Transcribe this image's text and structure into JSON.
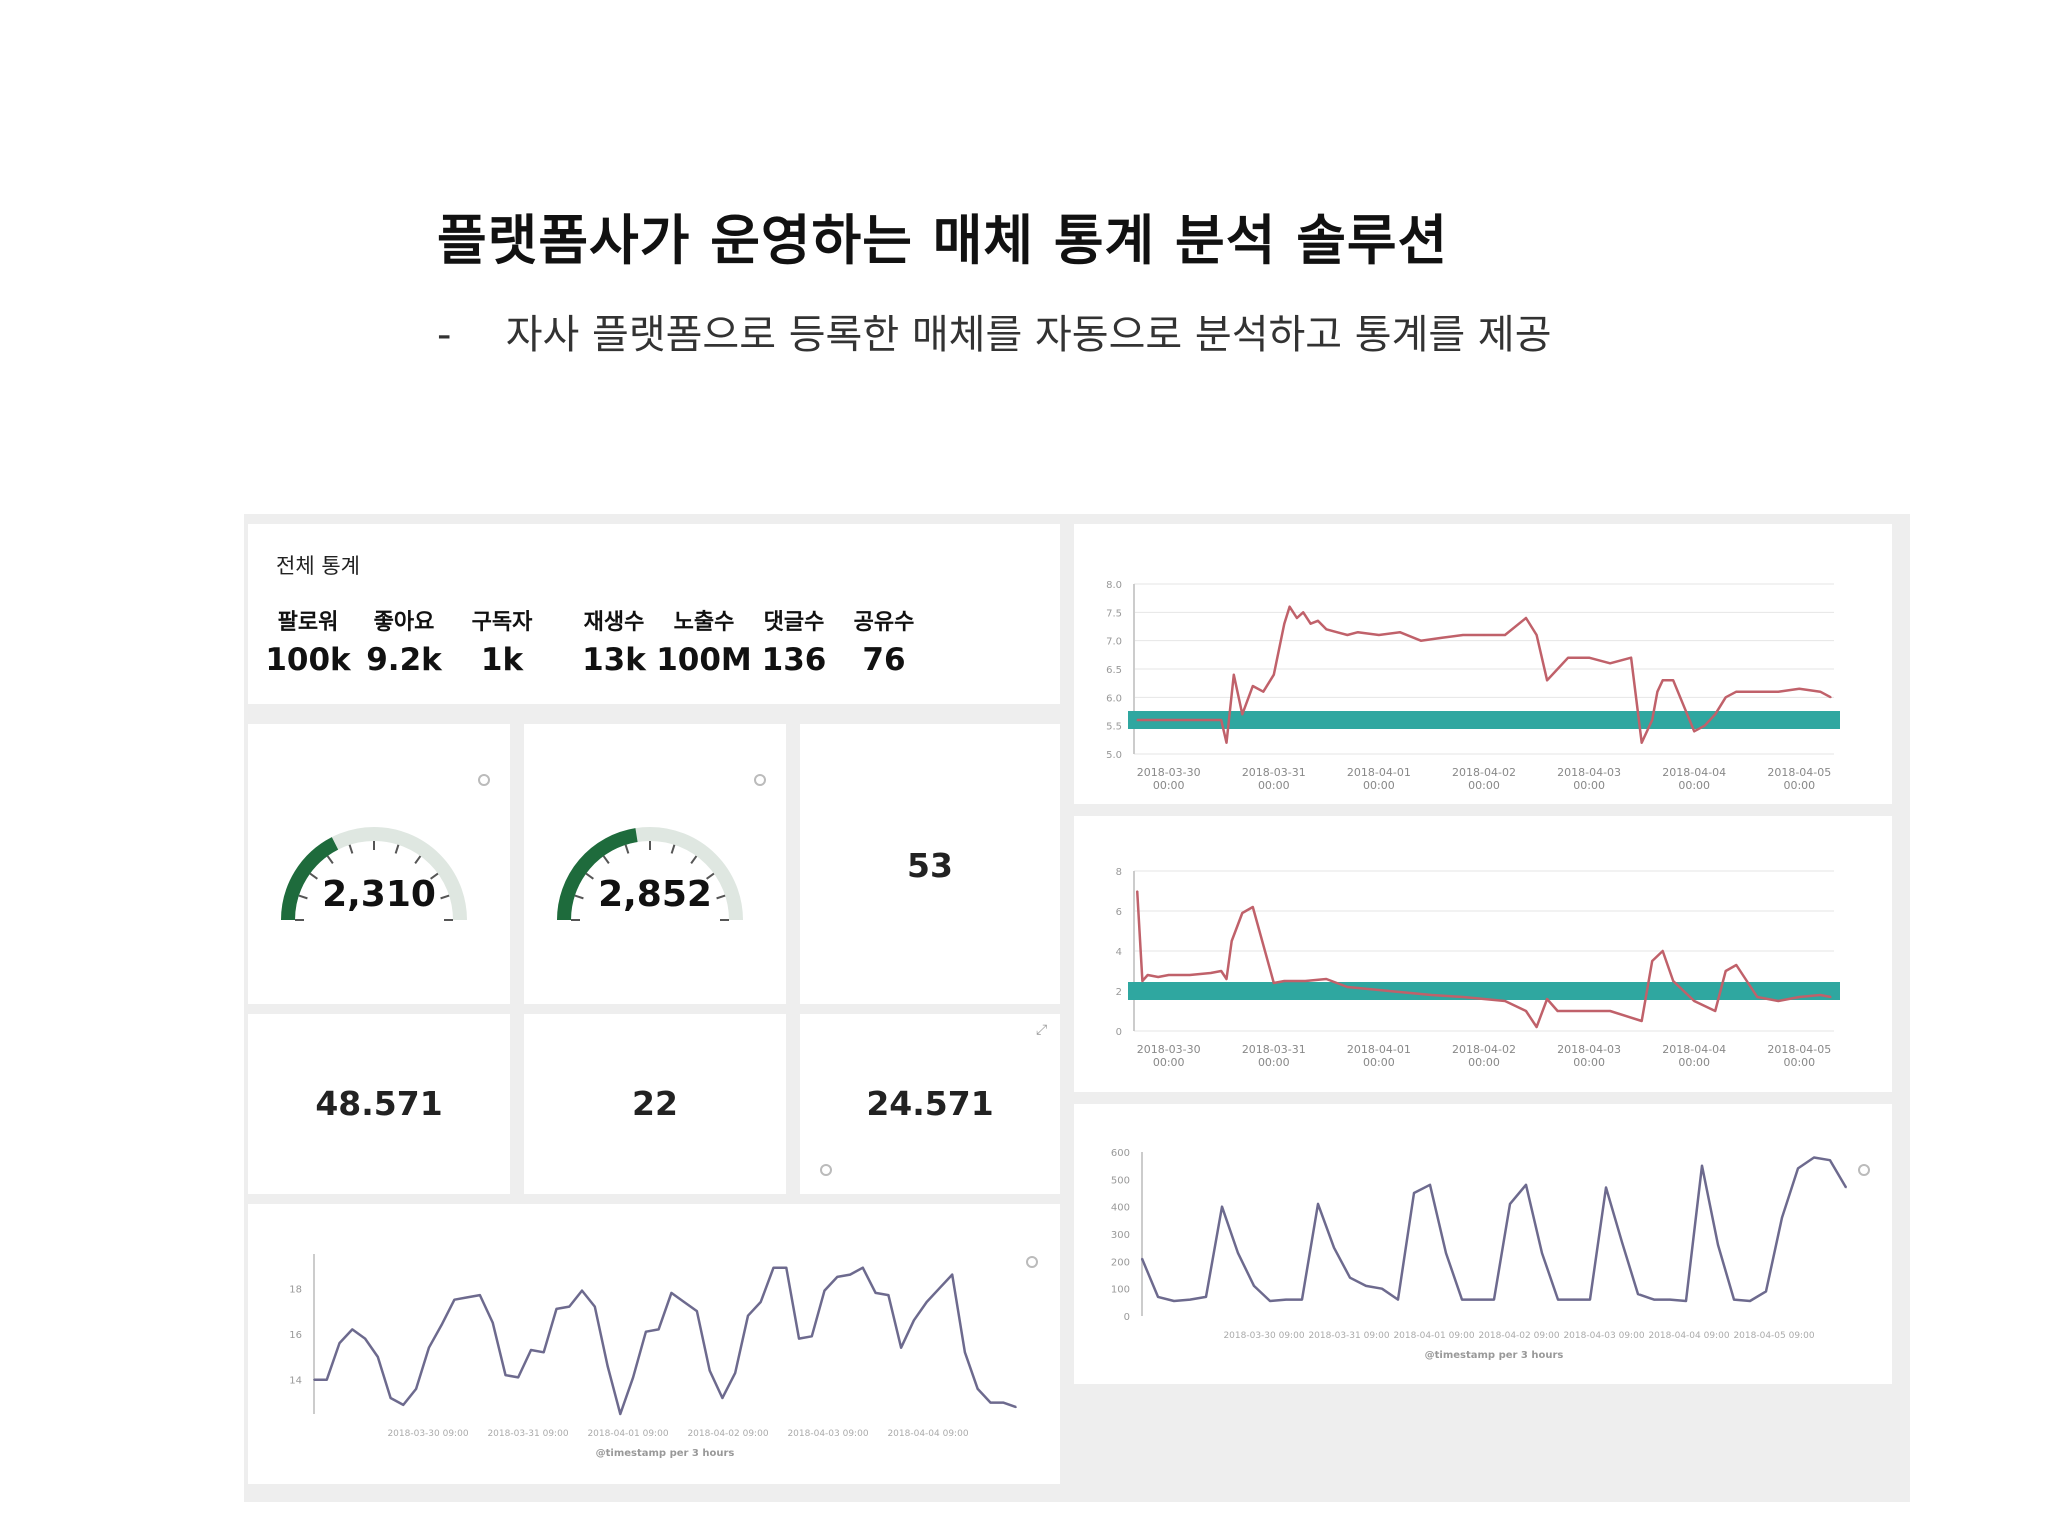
{
  "heading": "플랫폼사가 운영하는 매체 통계 분석 솔루션",
  "subheading": {
    "bullet": "-",
    "text": "자사 플랫폼으로 등록한 매체를 자동으로 분석하고 통계를 제공"
  },
  "dashboard": {
    "summary": {
      "title": "전체 통계",
      "stats": [
        {
          "label": "팔로워",
          "value": "100k"
        },
        {
          "label": "좋아요",
          "value": "9.2k"
        },
        {
          "label": "구독자",
          "value": "1k"
        },
        {
          "label": "재생수",
          "value": "13k"
        },
        {
          "label": "노출수",
          "value": "100M"
        },
        {
          "label": "댓글수",
          "value": "136"
        },
        {
          "label": "공유수",
          "value": "76"
        }
      ]
    },
    "gauges": [
      {
        "value": "2,310",
        "level": 0.35
      },
      {
        "value": "2,852",
        "level": 0.45
      }
    ],
    "metrics": [
      "53",
      "48.571",
      "22",
      "24.571"
    ],
    "accent_color": "#1e6b3c",
    "band_color": "#2fa7a0",
    "line_color": "#c0616a",
    "purple_line_color": "#6d6a8e"
  },
  "chart_data": [
    {
      "type": "line",
      "name": "top-right",
      "x_labels": [
        "2018-03-30 00:00",
        "2018-03-31 00:00",
        "2018-04-01 00:00",
        "2018-04-02 00:00",
        "2018-04-03 00:00",
        "2018-04-04 00:00",
        "2018-04-05 00:00"
      ],
      "y_ticks": [
        "8.0",
        "7.5",
        "7.0",
        "6.5",
        "6.0",
        "5.5",
        "5.0"
      ],
      "ylim": [
        5.0,
        8.0
      ],
      "xlim": [
        -0.33,
        6.33
      ],
      "band": 5.6,
      "x": [
        -0.3,
        0.5,
        0.55,
        0.62,
        0.7,
        0.8,
        0.9,
        1.0,
        1.1,
        1.15,
        1.22,
        1.28,
        1.35,
        1.42,
        1.5,
        1.6,
        1.7,
        1.8,
        2.0,
        2.2,
        2.4,
        2.6,
        2.8,
        3.0,
        3.2,
        3.4,
        3.5,
        3.6,
        3.7,
        3.8,
        3.9,
        4.0,
        4.2,
        4.4,
        4.5,
        4.6,
        4.65,
        4.7,
        4.8,
        5.0,
        5.1,
        5.2,
        5.3,
        5.4,
        5.6,
        5.8,
        6.0,
        6.2,
        6.3
      ],
      "values": [
        5.6,
        5.6,
        5.2,
        6.4,
        5.7,
        6.2,
        6.1,
        6.4,
        7.3,
        7.6,
        7.4,
        7.5,
        7.3,
        7.35,
        7.2,
        7.15,
        7.1,
        7.15,
        7.1,
        7.15,
        7.0,
        7.05,
        7.1,
        7.1,
        7.1,
        7.4,
        7.1,
        6.3,
        6.5,
        6.7,
        6.7,
        6.7,
        6.6,
        6.7,
        5.2,
        5.6,
        6.1,
        6.3,
        6.3,
        5.4,
        5.5,
        5.7,
        6.0,
        6.1,
        6.1,
        6.1,
        6.15,
        6.1,
        6.0
      ]
    },
    {
      "type": "line",
      "name": "middle-right",
      "x_labels": [
        "2018-03-30 00:00",
        "2018-03-31 00:00",
        "2018-04-01 00:00",
        "2018-04-02 00:00",
        "2018-04-03 00:00",
        "2018-04-04 00:00",
        "2018-04-05 00:00"
      ],
      "y_ticks": [
        "8",
        "6",
        "4",
        "2",
        "0"
      ],
      "ylim": [
        0,
        8
      ],
      "xlim": [
        -0.33,
        6.33
      ],
      "band": 2,
      "x": [
        -0.3,
        -0.25,
        -0.2,
        -0.1,
        0.0,
        0.2,
        0.4,
        0.5,
        0.55,
        0.6,
        0.7,
        0.8,
        1.0,
        1.1,
        1.3,
        1.5,
        1.7,
        1.9,
        2.1,
        2.3,
        2.5,
        2.8,
        3.0,
        3.2,
        3.4,
        3.5,
        3.6,
        3.7,
        3.8,
        3.9,
        4.0,
        4.2,
        4.5,
        4.6,
        4.7,
        4.8,
        5.0,
        5.2,
        5.3,
        5.4,
        5.6,
        5.8,
        6.0,
        6.2,
        6.3
      ],
      "values": [
        7.0,
        2.5,
        2.8,
        2.7,
        2.8,
        2.8,
        2.9,
        3.0,
        2.6,
        4.5,
        5.9,
        6.2,
        2.4,
        2.5,
        2.5,
        2.6,
        2.2,
        2.1,
        2.0,
        1.9,
        1.8,
        1.7,
        1.6,
        1.5,
        1.0,
        0.2,
        1.6,
        1.0,
        1.0,
        1.0,
        1.0,
        1.0,
        0.5,
        3.5,
        4.0,
        2.5,
        1.5,
        1.0,
        3.0,
        3.3,
        1.7,
        1.5,
        1.7,
        1.8,
        1.7
      ]
    },
    {
      "type": "line",
      "name": "bottom-right",
      "xlabel": "@timestamp per 3 hours",
      "x_labels": [
        "2018-03-30 09:00",
        "2018-03-31 09:00",
        "2018-04-01 09:00",
        "2018-04-02 09:00",
        "2018-04-03 09:00",
        "2018-04-04 09:00",
        "2018-04-05 09:00"
      ],
      "y_ticks": [
        "600",
        "500",
        "400",
        "300",
        "200",
        "100",
        "0"
      ],
      "ylim": [
        0,
        600
      ],
      "values": [
        210,
        70,
        55,
        60,
        70,
        400,
        230,
        110,
        55,
        60,
        60,
        410,
        250,
        140,
        110,
        100,
        60,
        450,
        480,
        230,
        60,
        60,
        60,
        410,
        480,
        230,
        60,
        60,
        60,
        470,
        270,
        80,
        60,
        60,
        55,
        550,
        260,
        60,
        55,
        90,
        360,
        540,
        580,
        570,
        470
      ]
    },
    {
      "type": "line",
      "name": "bottom-left",
      "xlabel": "@timestamp per 3 hours",
      "x_labels": [
        "2018-03-30 09:00",
        "2018-03-31 09:00",
        "2018-04-01 09:00",
        "2018-04-02 09:00",
        "2018-04-03 09:00",
        "2018-04-04 09:00"
      ],
      "y_ticks": [
        "18",
        "16",
        "14"
      ],
      "ylim": [
        12.5,
        19.5
      ],
      "values": [
        14,
        14,
        15.6,
        16.2,
        15.8,
        15,
        13.2,
        12.9,
        13.6,
        15.4,
        16.4,
        17.5,
        17.6,
        17.7,
        16.5,
        14.2,
        14.1,
        15.3,
        15.2,
        17.1,
        17.2,
        17.9,
        17.2,
        14.6,
        12.5,
        14.1,
        16.1,
        16.2,
        17.8,
        17.4,
        17.0,
        14.4,
        13.2,
        14.3,
        16.8,
        17.4,
        18.9,
        18.9,
        15.8,
        15.9,
        17.9,
        18.5,
        18.6,
        18.9,
        17.8,
        17.7,
        15.4,
        16.6,
        17.4,
        18.0,
        18.6,
        15.2,
        13.6,
        13.0,
        13.0,
        12.8
      ]
    }
  ]
}
